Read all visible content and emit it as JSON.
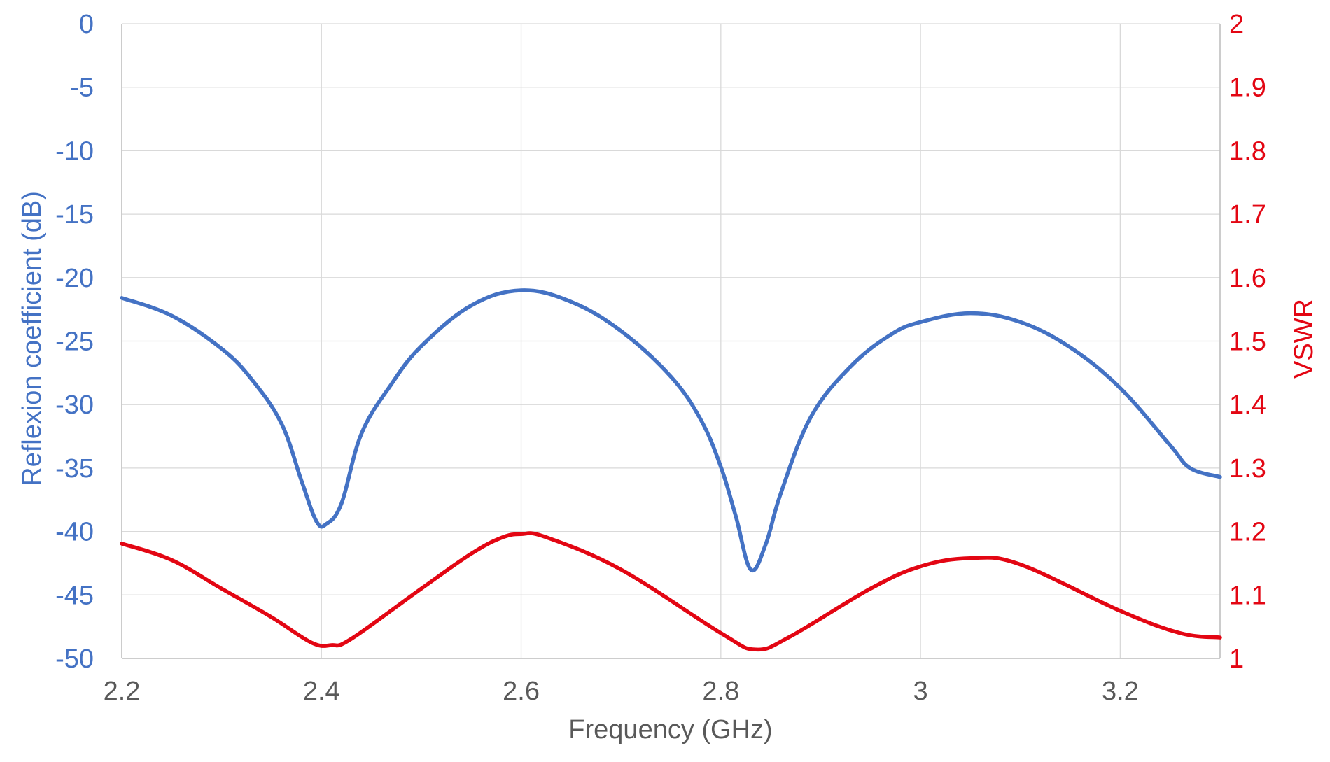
{
  "chart_data": {
    "type": "line",
    "title": "",
    "xlabel": "Frequency (GHz)",
    "ylabel_left": "Reflexion coefficient (dB)",
    "ylabel_right": "VSWR",
    "xlim": [
      2.2,
      3.3
    ],
    "ylim_left": [
      -50,
      0
    ],
    "ylim_right": [
      1,
      2
    ],
    "x_ticks": [
      {
        "value": 2.2,
        "label": "2.2"
      },
      {
        "value": 2.4,
        "label": "2.4"
      },
      {
        "value": 2.6,
        "label": "2.6"
      },
      {
        "value": 2.8,
        "label": "2.8"
      },
      {
        "value": 3.0,
        "label": "3"
      },
      {
        "value": 3.2,
        "label": "3.2"
      }
    ],
    "y_left_ticks": [
      {
        "value": 0,
        "label": "0"
      },
      {
        "value": -5,
        "label": "-5"
      },
      {
        "value": -10,
        "label": "-10"
      },
      {
        "value": -15,
        "label": "-15"
      },
      {
        "value": -20,
        "label": "-20"
      },
      {
        "value": -25,
        "label": "-25"
      },
      {
        "value": -30,
        "label": "-30"
      },
      {
        "value": -35,
        "label": "-35"
      },
      {
        "value": -40,
        "label": "-40"
      },
      {
        "value": -45,
        "label": "-45"
      },
      {
        "value": -50,
        "label": "-50"
      }
    ],
    "y_right_ticks": [
      {
        "value": 2,
        "label": "2"
      },
      {
        "value": 1.9,
        "label": "1.9"
      },
      {
        "value": 1.8,
        "label": "1.8"
      },
      {
        "value": 1.7,
        "label": "1.7"
      },
      {
        "value": 1.6,
        "label": "1.6"
      },
      {
        "value": 1.5,
        "label": "1.5"
      },
      {
        "value": 1.4,
        "label": "1.4"
      },
      {
        "value": 1.3,
        "label": "1.3"
      },
      {
        "value": 1.2,
        "label": "1.2"
      },
      {
        "value": 1.1,
        "label": "1.1"
      },
      {
        "value": 1,
        "label": "1"
      }
    ],
    "grid": true,
    "legend": "none",
    "colors": {
      "left_axis": "#4472c4",
      "right_axis": "#e30613",
      "xaxis_text": "#595959"
    },
    "series": [
      {
        "axis": "left",
        "color": "#4472c4",
        "x": [
          2.2,
          2.25,
          2.3,
          2.33,
          2.36,
          2.38,
          2.395,
          2.405,
          2.42,
          2.44,
          2.47,
          2.5,
          2.55,
          2.6,
          2.65,
          2.7,
          2.75,
          2.78,
          2.8,
          2.815,
          2.83,
          2.845,
          2.86,
          2.89,
          2.93,
          2.97,
          3.0,
          3.05,
          3.1,
          3.15,
          3.2,
          3.25,
          3.27,
          3.3
        ],
        "y": [
          -21.6,
          -23.0,
          -25.6,
          -28.0,
          -31.5,
          -36.0,
          -39.2,
          -39.4,
          -37.8,
          -32.3,
          -28.4,
          -25.4,
          -22.2,
          -21.0,
          -21.9,
          -24.2,
          -27.8,
          -31.2,
          -34.9,
          -38.8,
          -43.0,
          -41.0,
          -37.0,
          -31.0,
          -27.0,
          -24.5,
          -23.5,
          -22.8,
          -23.5,
          -25.5,
          -28.7,
          -33.2,
          -35.0,
          -35.7
        ]
      },
      {
        "axis": "right",
        "color": "#e30613",
        "x": [
          2.2,
          2.25,
          2.3,
          2.35,
          2.39,
          2.41,
          2.43,
          2.5,
          2.55,
          2.58,
          2.6,
          2.625,
          2.7,
          2.8,
          2.835,
          2.87,
          2.95,
          3.0,
          3.05,
          3.1,
          3.2,
          3.26,
          3.3
        ],
        "y": [
          1.181,
          1.155,
          1.11,
          1.065,
          1.025,
          1.021,
          1.031,
          1.11,
          1.165,
          1.19,
          1.196,
          1.191,
          1.14,
          1.04,
          1.014,
          1.035,
          1.11,
          1.145,
          1.158,
          1.148,
          1.075,
          1.04,
          1.033
        ]
      }
    ]
  }
}
